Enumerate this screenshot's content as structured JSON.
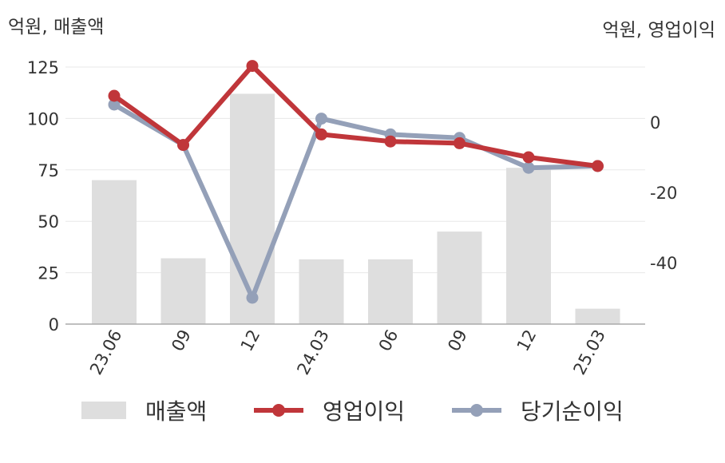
{
  "chart_data": {
    "type": "bar+line",
    "categories": [
      "23.06",
      "09",
      "12",
      "24.03",
      "06",
      "09",
      "12",
      "25.03"
    ],
    "left_axis": {
      "unit_label": "억원, 매출액",
      "ticks": [
        0,
        25,
        50,
        75,
        100,
        125
      ],
      "ylim": [
        0,
        125
      ]
    },
    "right_axis": {
      "unit_label": "억원, 영업이익",
      "ticks": [
        0,
        -20,
        -40
      ]
    },
    "series": [
      {
        "name": "매출액",
        "kind": "bar",
        "axis": "left",
        "color": "#dedede",
        "values": [
          70,
          32,
          112,
          31.5,
          31.5,
          45,
          76,
          7.5
        ]
      },
      {
        "name": "영업이익",
        "kind": "line",
        "axis": "right",
        "color": "#c0363a",
        "values": [
          7.5,
          -6.5,
          16,
          -3.5,
          -5.5,
          -6,
          -10,
          -12.5
        ]
      },
      {
        "name": "당기순이익",
        "kind": "line",
        "axis": "right",
        "color": "#94a0b8",
        "values": [
          5,
          -6.5,
          -50,
          1,
          -3.5,
          -4.5,
          -13,
          -12.5
        ]
      }
    ],
    "grid": true,
    "legend_position": "bottom"
  }
}
